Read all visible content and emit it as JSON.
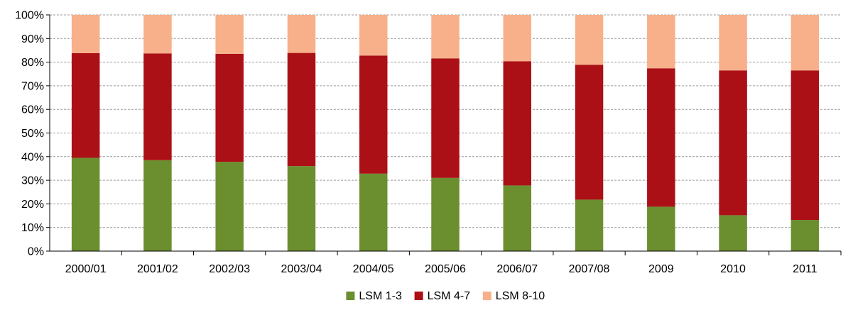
{
  "chart_data": {
    "type": "bar",
    "stacked": true,
    "categories": [
      "2000/01",
      "2001/02",
      "2002/03",
      "2003/04",
      "2004/05",
      "2005/06",
      "2006/07",
      "2007/08",
      "2009",
      "2010",
      "2011"
    ],
    "series": [
      {
        "name": "LSM 1-3",
        "color": "#6b8e2f",
        "values": [
          39.5,
          38.5,
          37.8,
          36.0,
          32.8,
          31.0,
          27.8,
          21.8,
          18.8,
          15.2,
          13.2
        ]
      },
      {
        "name": "LSM 4-7",
        "color": "#ab1016",
        "values": [
          44.3,
          45.2,
          45.7,
          47.9,
          50.0,
          50.6,
          52.6,
          57.1,
          58.6,
          61.3,
          63.3
        ]
      },
      {
        "name": "LSM 8-10",
        "color": "#f7b08a",
        "values": [
          16.2,
          16.3,
          16.5,
          16.1,
          17.2,
          18.4,
          19.6,
          21.1,
          22.6,
          23.5,
          23.5
        ]
      }
    ],
    "yticks": [
      "0%",
      "10%",
      "20%",
      "30%",
      "40%",
      "50%",
      "60%",
      "70%",
      "80%",
      "90%",
      "100%"
    ],
    "ylim": [
      0,
      100
    ],
    "grid": true,
    "legend": "bottom-center"
  }
}
